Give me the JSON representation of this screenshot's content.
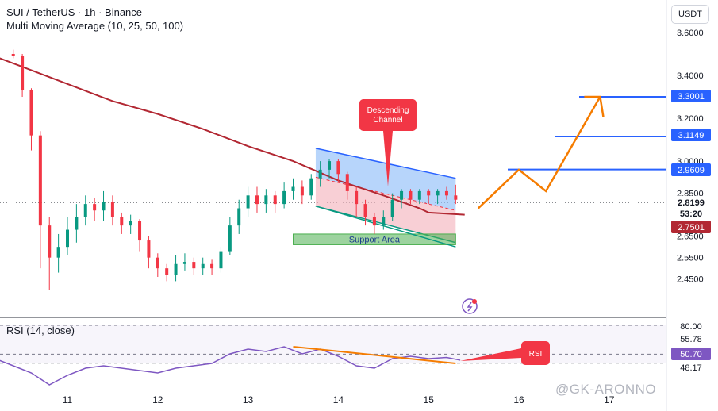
{
  "header": {
    "symbol_line": "SUI / TetherUS · 1h · Binance",
    "indicator_line": "Multi Moving Average (10, 25, 50, 100)"
  },
  "currency_button": "USDT",
  "rsi_title": "RSI (14, close)",
  "watermark": "@GK-ARONNO",
  "chart_data": {
    "type": "candlestick",
    "symbol": "SUI / TetherUS",
    "timeframe": "1h",
    "exchange": "Binance",
    "price_axis": {
      "ticks": [
        "3.6000",
        "3.4000",
        "3.2000",
        "3.0000",
        "2.8500",
        "2.6500",
        "2.5500",
        "2.4500"
      ],
      "ylim": [
        2.38,
        3.65
      ]
    },
    "time_axis": {
      "ticks": [
        "11",
        "12",
        "13",
        "14",
        "15",
        "16",
        "17"
      ]
    },
    "price_labels": [
      {
        "text": "3.3001",
        "color": "#2962ff"
      },
      {
        "text": "3.1149",
        "color": "#2962ff"
      },
      {
        "text": "2.9609",
        "color": "#2962ff"
      },
      {
        "text": "2.8199",
        "color": "#131722"
      },
      {
        "text": "53:20",
        "color": "#131722"
      },
      {
        "text": "2.7501",
        "color": "#b22833"
      }
    ],
    "horizontal_levels": [
      3.3001,
      3.1149,
      2.9609
    ],
    "current_price": 2.8199,
    "moving_average_value": 2.7501,
    "moving_average": [
      [
        10.0,
        3.52
      ],
      [
        10.5,
        3.44
      ],
      [
        11.0,
        3.36
      ],
      [
        11.5,
        3.28
      ],
      [
        12.0,
        3.22
      ],
      [
        12.5,
        3.15
      ],
      [
        13.0,
        3.07
      ],
      [
        13.5,
        3.0
      ],
      [
        14.0,
        2.91
      ],
      [
        14.5,
        2.84
      ],
      [
        14.9,
        2.78
      ],
      [
        15.0,
        2.76
      ],
      [
        15.4,
        2.75
      ]
    ],
    "candles": [
      [
        10.2,
        3.49,
        3.5,
        3.47,
        3.51,
        "up"
      ],
      [
        10.4,
        3.5,
        3.49,
        3.48,
        3.52,
        "down"
      ],
      [
        10.5,
        3.49,
        3.33,
        3.3,
        3.5,
        "down"
      ],
      [
        10.6,
        3.33,
        3.12,
        3.05,
        3.34,
        "down"
      ],
      [
        10.7,
        3.12,
        2.7,
        2.5,
        3.14,
        "down"
      ],
      [
        10.8,
        2.7,
        2.55,
        2.4,
        2.74,
        "down"
      ],
      [
        10.9,
        2.55,
        2.6,
        2.48,
        2.66,
        "up"
      ],
      [
        11.0,
        2.6,
        2.68,
        2.56,
        2.74,
        "up"
      ],
      [
        11.1,
        2.68,
        2.74,
        2.62,
        2.8,
        "up"
      ],
      [
        11.2,
        2.74,
        2.8,
        2.7,
        2.84,
        "up"
      ],
      [
        11.3,
        2.8,
        2.77,
        2.72,
        2.83,
        "down"
      ],
      [
        11.4,
        2.77,
        2.81,
        2.72,
        2.86,
        "up"
      ],
      [
        11.5,
        2.81,
        2.74,
        2.7,
        2.84,
        "down"
      ],
      [
        11.6,
        2.74,
        2.7,
        2.66,
        2.76,
        "down"
      ],
      [
        11.7,
        2.7,
        2.72,
        2.66,
        2.75,
        "up"
      ],
      [
        11.8,
        2.72,
        2.63,
        2.58,
        2.73,
        "down"
      ],
      [
        11.9,
        2.63,
        2.55,
        2.5,
        2.65,
        "down"
      ],
      [
        12.0,
        2.55,
        2.5,
        2.46,
        2.57,
        "down"
      ],
      [
        12.1,
        2.5,
        2.47,
        2.44,
        2.52,
        "down"
      ],
      [
        12.2,
        2.47,
        2.52,
        2.44,
        2.56,
        "up"
      ],
      [
        12.3,
        2.52,
        2.53,
        2.49,
        2.57,
        "up"
      ],
      [
        12.4,
        2.53,
        2.5,
        2.47,
        2.55,
        "down"
      ],
      [
        12.5,
        2.5,
        2.52,
        2.47,
        2.55,
        "up"
      ],
      [
        12.6,
        2.52,
        2.5,
        2.47,
        2.54,
        "down"
      ],
      [
        12.7,
        2.5,
        2.58,
        2.48,
        2.6,
        "up"
      ],
      [
        12.8,
        2.58,
        2.7,
        2.56,
        2.74,
        "up"
      ],
      [
        12.9,
        2.7,
        2.78,
        2.66,
        2.82,
        "up"
      ],
      [
        13.0,
        2.78,
        2.84,
        2.74,
        2.88,
        "up"
      ],
      [
        13.1,
        2.84,
        2.8,
        2.76,
        2.88,
        "down"
      ],
      [
        13.2,
        2.8,
        2.84,
        2.76,
        2.87,
        "up"
      ],
      [
        13.3,
        2.84,
        2.8,
        2.76,
        2.86,
        "down"
      ],
      [
        13.4,
        2.8,
        2.86,
        2.78,
        2.9,
        "up"
      ],
      [
        13.5,
        2.86,
        2.88,
        2.82,
        2.92,
        "up"
      ],
      [
        13.6,
        2.88,
        2.84,
        2.8,
        2.91,
        "down"
      ],
      [
        13.7,
        2.84,
        2.92,
        2.82,
        2.94,
        "up"
      ],
      [
        13.8,
        2.92,
        2.96,
        2.88,
        3.0,
        "up"
      ],
      [
        13.9,
        2.96,
        3.0,
        2.92,
        3.01,
        "up"
      ],
      [
        14.0,
        3.0,
        2.94,
        2.9,
        3.01,
        "down"
      ],
      [
        14.1,
        2.94,
        2.86,
        2.82,
        2.95,
        "down"
      ],
      [
        14.2,
        2.86,
        2.8,
        2.74,
        2.88,
        "down"
      ],
      [
        14.3,
        2.8,
        2.74,
        2.7,
        2.82,
        "down"
      ],
      [
        14.4,
        2.74,
        2.7,
        2.66,
        2.76,
        "down"
      ],
      [
        14.5,
        2.7,
        2.74,
        2.68,
        2.77,
        "up"
      ],
      [
        14.6,
        2.74,
        2.82,
        2.72,
        2.85,
        "up"
      ],
      [
        14.7,
        2.82,
        2.86,
        2.78,
        2.87,
        "up"
      ],
      [
        14.8,
        2.86,
        2.82,
        2.8,
        2.87,
        "down"
      ],
      [
        14.9,
        2.82,
        2.86,
        2.8,
        2.87,
        "up"
      ],
      [
        15.0,
        2.86,
        2.84,
        2.8,
        2.87,
        "down"
      ],
      [
        15.1,
        2.84,
        2.86,
        2.8,
        2.87,
        "up"
      ],
      [
        15.2,
        2.86,
        2.84,
        2.82,
        2.88,
        "down"
      ],
      [
        15.3,
        2.84,
        2.82,
        2.8,
        2.89,
        "down"
      ]
    ],
    "descending_channel": {
      "label": "Descending Channel",
      "upper": [
        [
          13.75,
          3.06
        ],
        [
          15.3,
          2.92
        ]
      ],
      "lower": [
        [
          13.75,
          2.79
        ],
        [
          15.3,
          2.62
        ]
      ]
    },
    "support_area": {
      "label": "Support Area",
      "from": [
        13.5,
        15.3
      ],
      "price": [
        2.61,
        2.66
      ]
    },
    "projection": [
      [
        15.55,
        2.78
      ],
      [
        16.0,
        2.96
      ],
      [
        16.3,
        2.86
      ],
      [
        16.9,
        3.3
      ]
    ],
    "rsi": {
      "ticks": [
        "80.00",
        "55.78",
        "50.70",
        "48.17"
      ],
      "label": "RSI",
      "values": [
        [
          10.2,
          52
        ],
        [
          10.4,
          46
        ],
        [
          10.6,
          40
        ],
        [
          10.8,
          30
        ],
        [
          11.0,
          38
        ],
        [
          11.2,
          44
        ],
        [
          11.4,
          46
        ],
        [
          11.6,
          44
        ],
        [
          11.8,
          42
        ],
        [
          12.0,
          40
        ],
        [
          12.2,
          44
        ],
        [
          12.4,
          46
        ],
        [
          12.6,
          48
        ],
        [
          12.8,
          56
        ],
        [
          13.0,
          60
        ],
        [
          13.2,
          58
        ],
        [
          13.4,
          62
        ],
        [
          13.6,
          56
        ],
        [
          13.8,
          60
        ],
        [
          14.0,
          54
        ],
        [
          14.2,
          46
        ],
        [
          14.4,
          44
        ],
        [
          14.6,
          52
        ],
        [
          14.8,
          54
        ],
        [
          15.0,
          52
        ],
        [
          15.2,
          53
        ],
        [
          15.35,
          50.7
        ]
      ],
      "trendline": [
        [
          13.5,
          62
        ],
        [
          15.3,
          48
        ]
      ]
    }
  }
}
